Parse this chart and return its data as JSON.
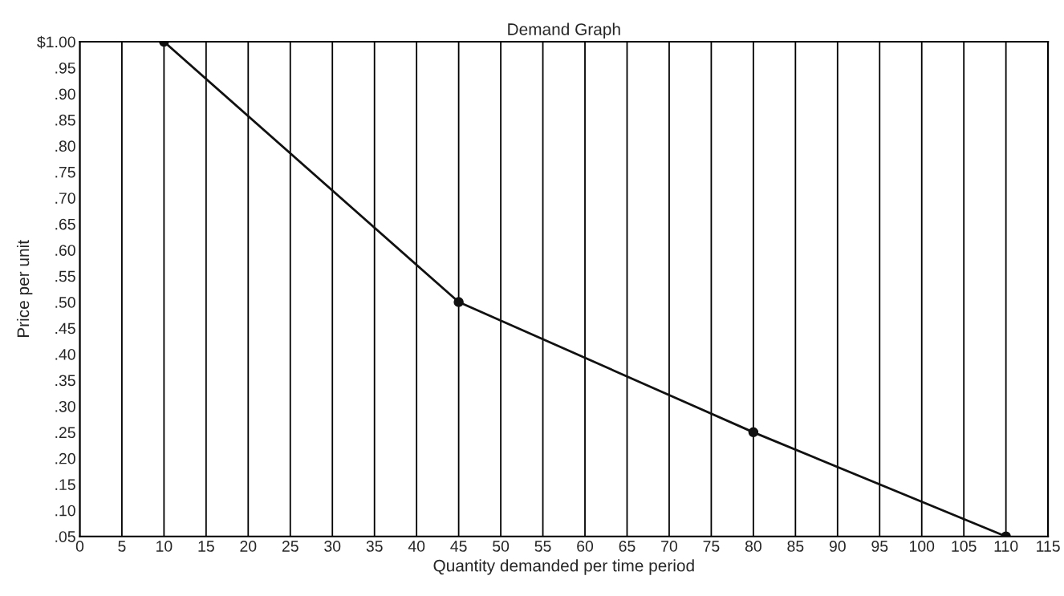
{
  "chart_data": {
    "type": "line",
    "title": "Demand Graph",
    "xlabel": "Quantity demanded per time period",
    "ylabel": "Price per unit",
    "x": [
      10,
      45,
      80,
      110
    ],
    "series": [
      {
        "color": "#111111",
        "values": [
          1.0,
          0.5,
          0.25,
          0.05
        ]
      }
    ],
    "xlim": [
      0,
      115
    ],
    "ylim": [
      0.05,
      1.0
    ],
    "xticks": [
      0,
      5,
      10,
      15,
      20,
      25,
      30,
      35,
      40,
      45,
      50,
      55,
      60,
      65,
      70,
      75,
      80,
      85,
      90,
      95,
      100,
      105,
      110,
      115
    ],
    "yticks": [
      {
        "value": 0.05,
        "label": ".05"
      },
      {
        "value": 0.1,
        "label": ".10"
      },
      {
        "value": 0.15,
        "label": ".15"
      },
      {
        "value": 0.2,
        "label": ".20"
      },
      {
        "value": 0.25,
        "label": ".25"
      },
      {
        "value": 0.3,
        "label": ".30"
      },
      {
        "value": 0.35,
        "label": ".35"
      },
      {
        "value": 0.4,
        "label": ".40"
      },
      {
        "value": 0.45,
        "label": ".45"
      },
      {
        "value": 0.5,
        "label": ".50"
      },
      {
        "value": 0.55,
        "label": ".55"
      },
      {
        "value": 0.6,
        "label": ".60"
      },
      {
        "value": 0.65,
        "label": ".65"
      },
      {
        "value": 0.7,
        "label": ".70"
      },
      {
        "value": 0.75,
        "label": ".75"
      },
      {
        "value": 0.8,
        "label": ".80"
      },
      {
        "value": 0.85,
        "label": ".85"
      },
      {
        "value": 0.9,
        "label": ".90"
      },
      {
        "value": 0.95,
        "label": ".95"
      },
      {
        "value": 1.0,
        "label": "$1.00"
      }
    ],
    "grid": "x",
    "marker": "circle",
    "line_style": "solid"
  }
}
